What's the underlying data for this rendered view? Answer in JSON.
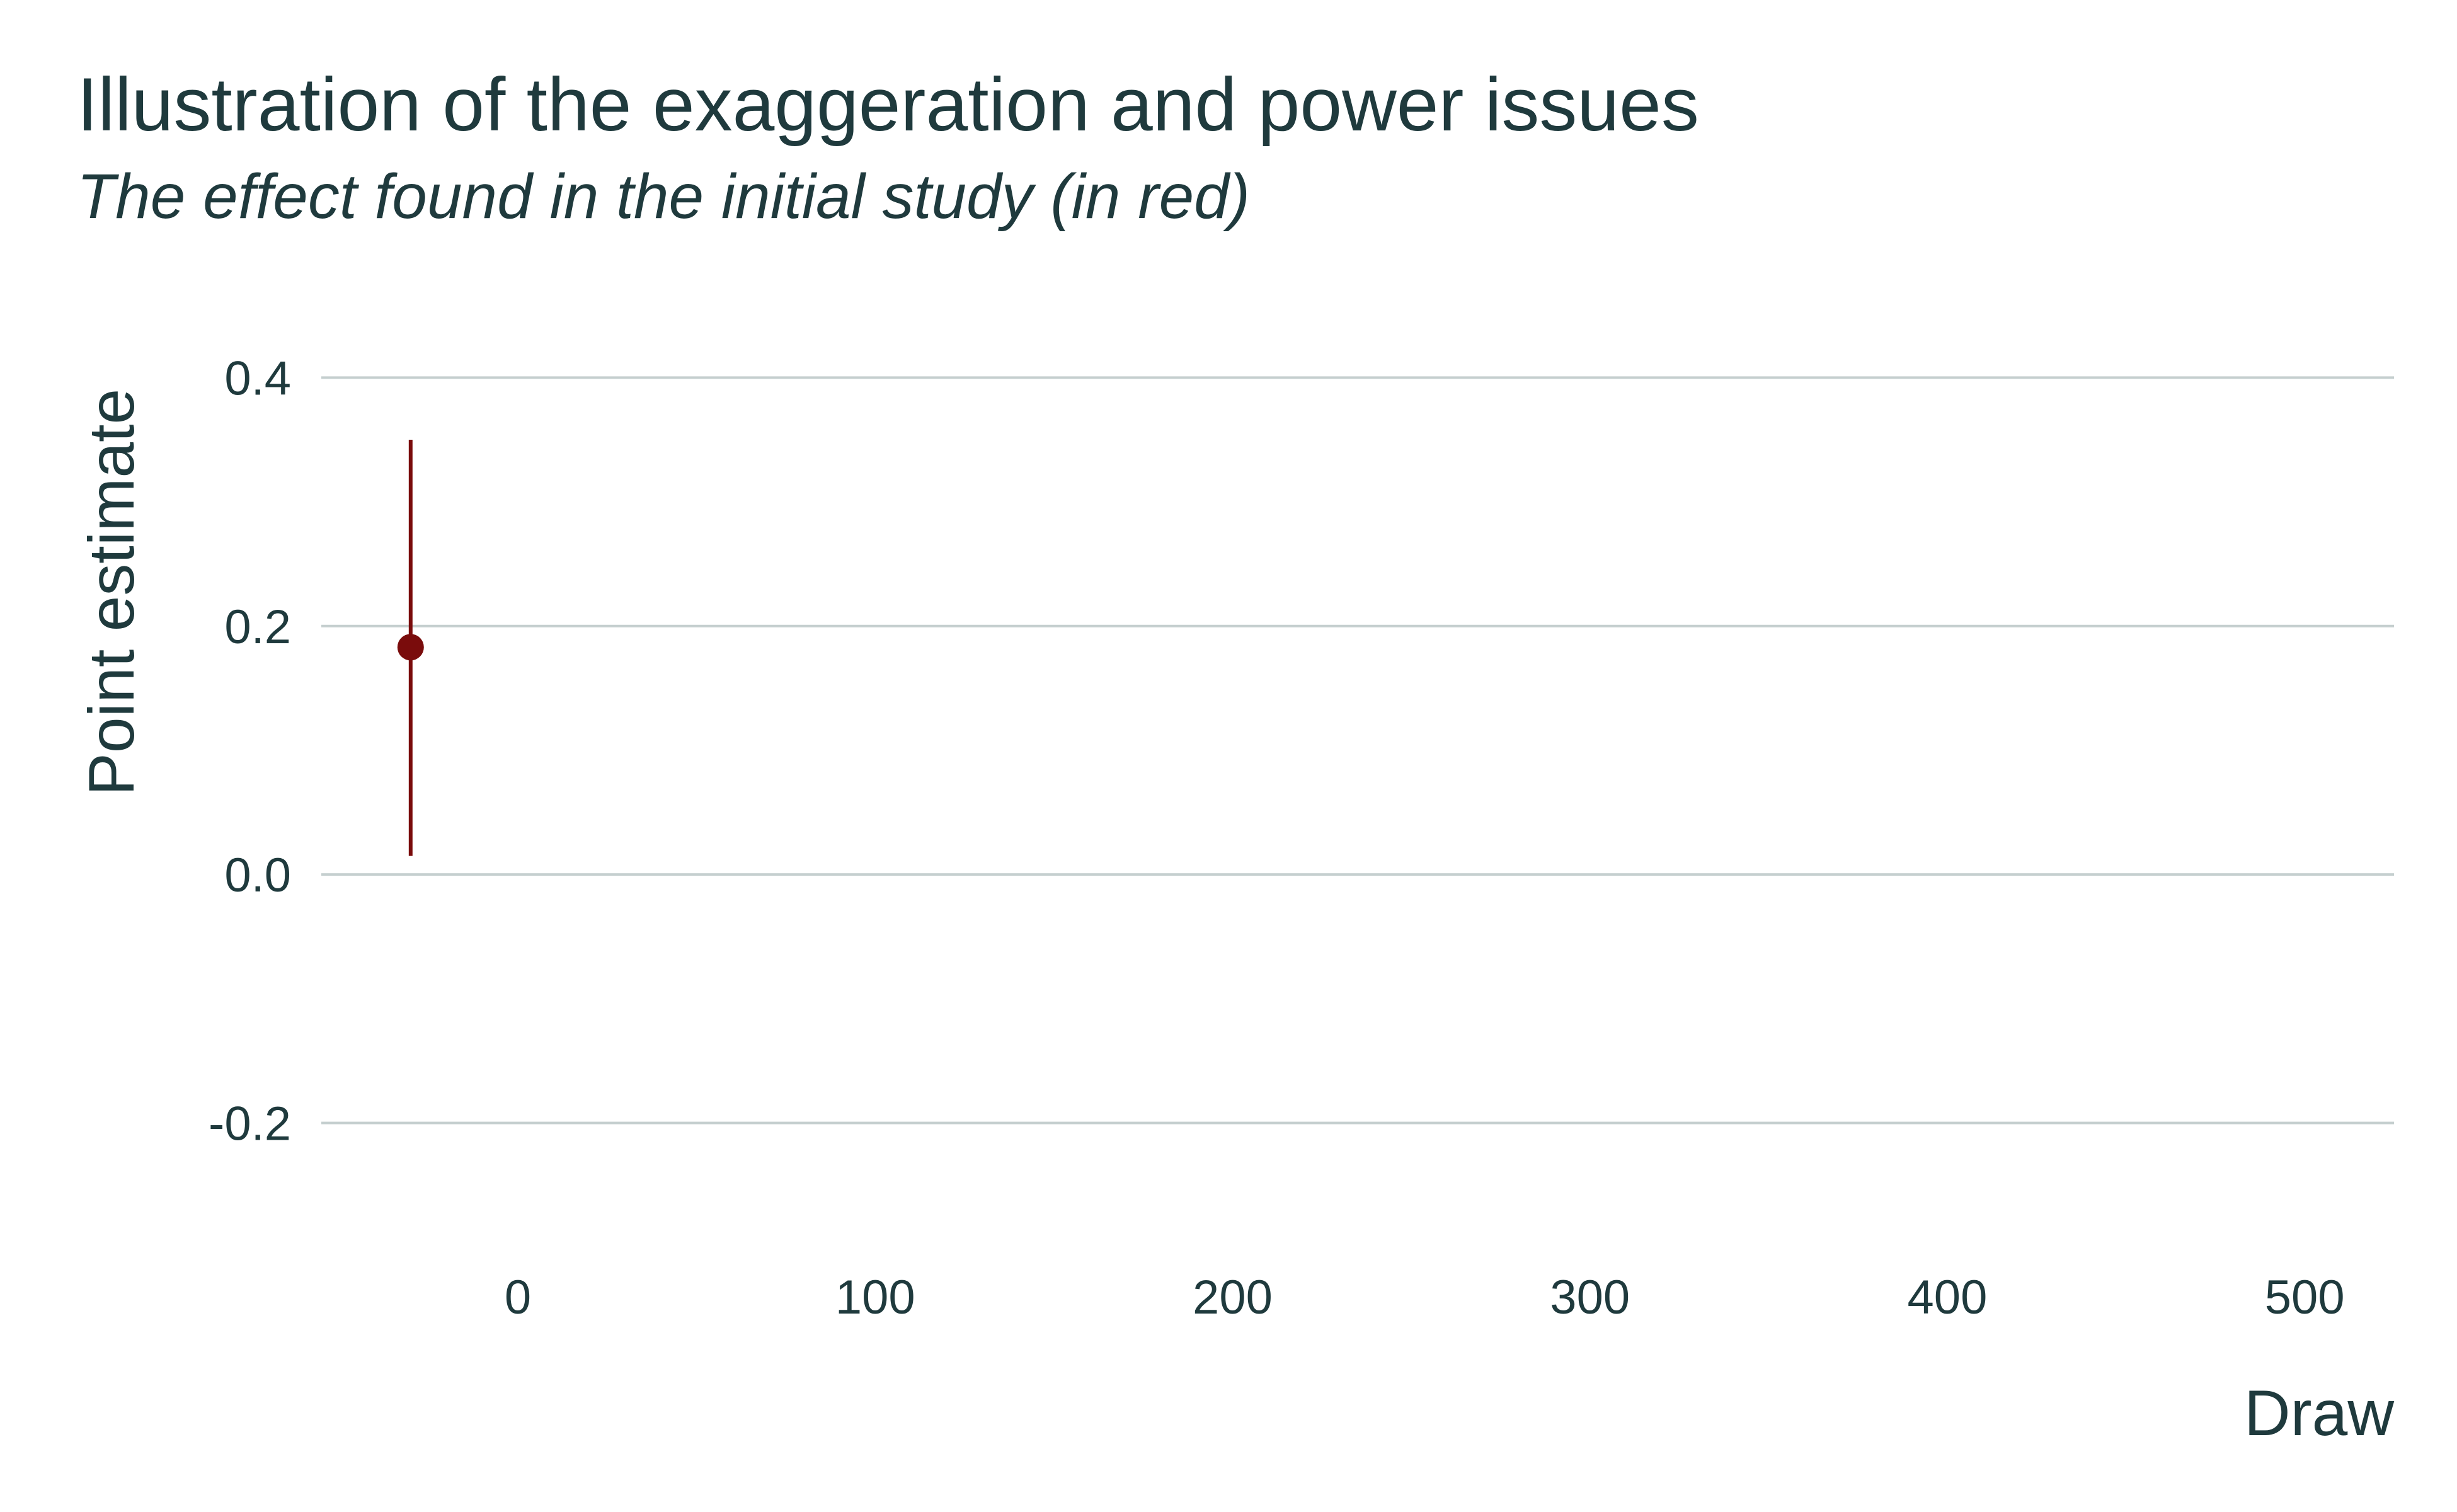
{
  "chart_data": {
    "type": "scatter",
    "title": "Illustration of the exaggeration and power issues",
    "subtitle": "The effect found in the initial study (in red)",
    "xlabel": "Draw",
    "ylabel": "Point estimate",
    "xlim": [
      -55,
      525
    ],
    "ylim": [
      -0.29,
      0.42
    ],
    "x_ticks": [
      0,
      100,
      200,
      300,
      400,
      500
    ],
    "x_tick_labels": [
      "0",
      "100",
      "200",
      "300",
      "400",
      "500"
    ],
    "y_ticks": [
      -0.2,
      0.0,
      0.2,
      0.4
    ],
    "y_tick_labels": [
      "-0.2",
      "0.0",
      "0.2",
      "0.4"
    ],
    "grid": "horizontal",
    "legend": "none",
    "points": [
      {
        "x": -30,
        "y": 0.183,
        "ci_low": 0.015,
        "ci_high": 0.35
      }
    ],
    "colors": {
      "point": "#7a0c0c",
      "text": "#1f3a3d",
      "grid": "#c5cfcf"
    }
  }
}
